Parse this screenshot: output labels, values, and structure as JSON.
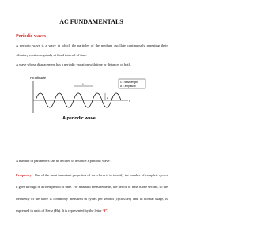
{
  "header": {
    "title": "AC FUNDAMENTALS"
  },
  "section": {
    "heading": "Periodic waves",
    "paragraphs": [
      "A periodic wave is a wave in which the particles of the medium oscillate continuously repeating their vibratory motion regularly at fixed interval of time.",
      "A wave whose displacement has a periodic variation with time or distance, or both."
    ]
  },
  "figure": {
    "y_label": "Amplitude",
    "legend": [
      "λ = wavelength",
      "a = amplitude"
    ],
    "lambda": "λ",
    "a": "a",
    "x": "x",
    "caption": "A periodic wave"
  },
  "intro": "A number of parameters can be defined to describe a periodic wave:",
  "frequency": {
    "term": "Frequency",
    "text": " - One of the most important properties of waveform is to identify the number of complete cycles it goes through in a fixed period of time. For standard measurements, the period of time is one second, so the frequency of the wave is commonly measured in cycles per second (cycles/sec) and, in normal usage, is expressed in units of Hertz (Hz). It is represented by the letter ",
    "symbol": "“f”."
  }
}
